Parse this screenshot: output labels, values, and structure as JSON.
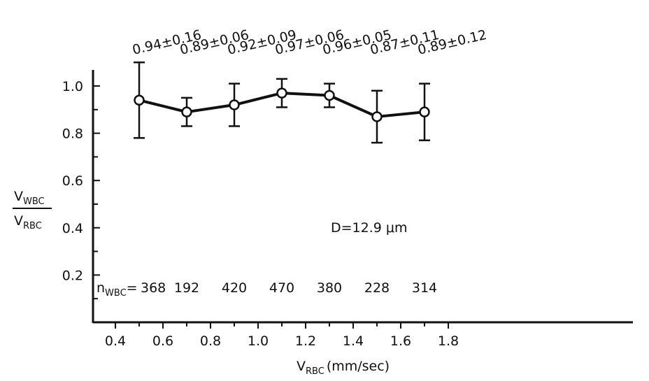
{
  "chart_data": {
    "type": "line",
    "title": "",
    "xlabel": "V",
    "xlabel_sub": "RBC",
    "xlabel_unit": "(mm/sec)",
    "ylabel_num": "V",
    "ylabel_num_sub": "WBC",
    "ylabel_den": "V",
    "ylabel_den_sub": "RBC",
    "xlim": [
      0.3,
      1.9
    ],
    "ylim": [
      0.0,
      1.1
    ],
    "x_ticks": [
      0.4,
      0.6,
      0.8,
      1.0,
      1.2,
      1.4,
      1.6,
      1.8
    ],
    "x_tick_labels": [
      "0.4",
      "0.6",
      "0.8",
      "1.0",
      "1.2",
      "1.4",
      "1.6",
      "1.8"
    ],
    "y_ticks": [
      0.2,
      0.4,
      0.6,
      0.8,
      1.0
    ],
    "y_tick_labels": [
      "0.2",
      "0.4",
      "0.6",
      "0.8",
      "1.0"
    ],
    "y_minor_ticks": [
      0.1,
      0.3,
      0.5,
      0.7,
      0.9
    ],
    "series": [
      {
        "x": [
          0.5,
          0.7,
          0.9,
          1.1,
          1.3,
          1.5,
          1.7
        ],
        "y": [
          0.94,
          0.89,
          0.92,
          0.97,
          0.96,
          0.87,
          0.89
        ],
        "err": [
          0.16,
          0.06,
          0.09,
          0.06,
          0.05,
          0.11,
          0.12
        ]
      }
    ],
    "value_labels": [
      "0.94±0.16",
      "0.89±0.06",
      "0.92±0.09",
      "0.97±0.06",
      "0.96±0.05",
      "0.87±0.11",
      "0.89±0.12"
    ],
    "counts_label": "n",
    "counts_label_sub": "WBC",
    "counts_prefix": "=",
    "counts": [
      "368",
      "192",
      "420",
      "470",
      "380",
      "228",
      "314"
    ],
    "annotation": "D=12.9 μm",
    "grid": false
  }
}
